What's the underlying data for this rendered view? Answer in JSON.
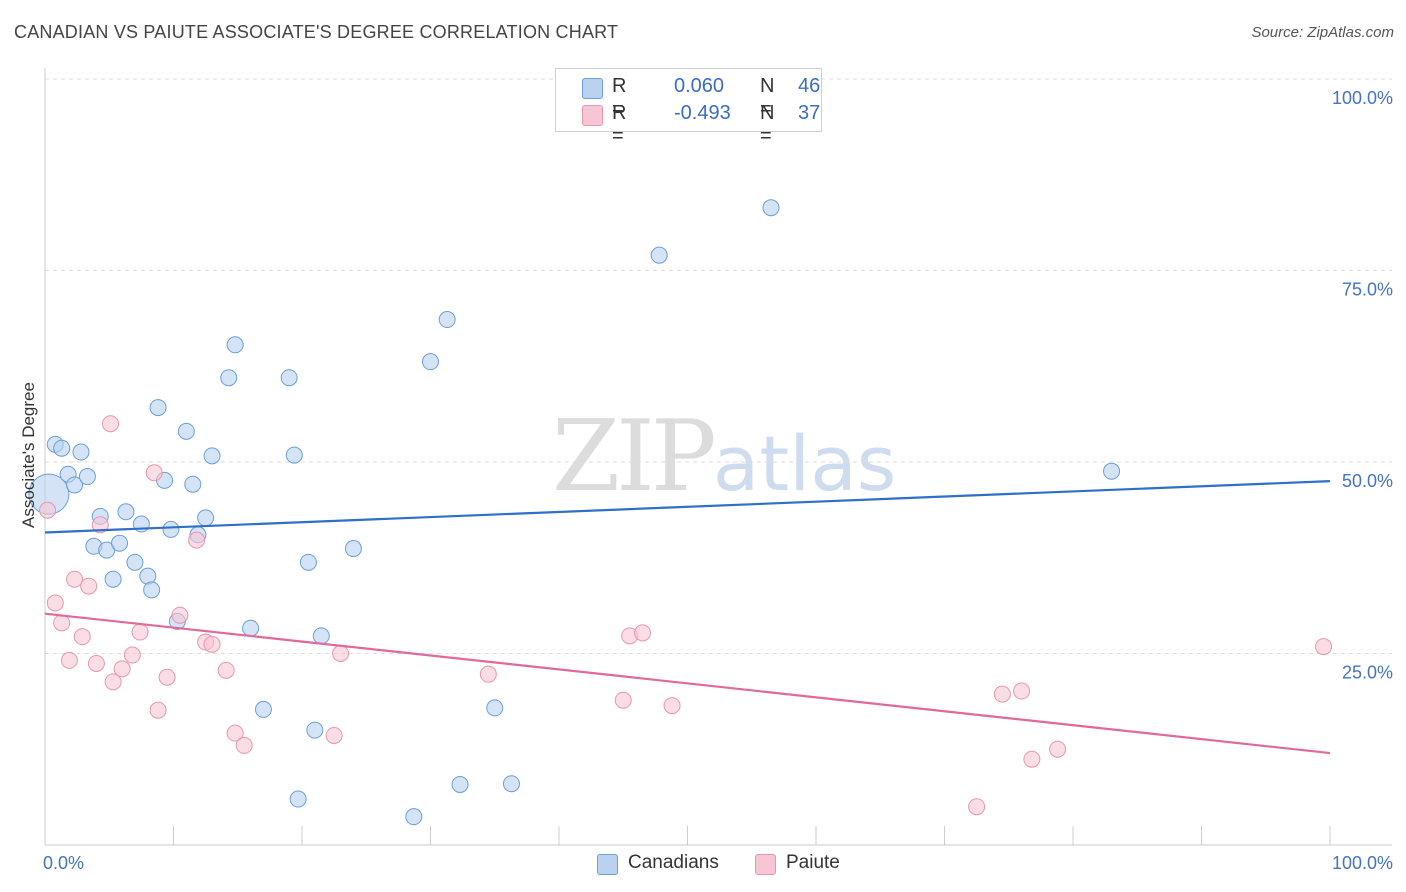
{
  "header": {
    "title": "CANADIAN VS PAIUTE ASSOCIATE'S DEGREE CORRELATION CHART",
    "source": "Source: ZipAtlas.com"
  },
  "watermark": {
    "zip": "ZIP",
    "atlas": "atlas"
  },
  "legend": {
    "rows": [
      {
        "r_label": "R =",
        "r_value": "0.060",
        "n_label": "N =",
        "n_value": "46"
      },
      {
        "r_label": "R =",
        "r_value": "-0.493",
        "n_label": "N =",
        "n_value": "37"
      }
    ]
  },
  "bottom_legend": {
    "canadians": "Canadians",
    "paiute": "Paiute"
  },
  "colors": {
    "canadians_fill": "#b8d2f0",
    "canadians_stroke": "#6a9fd8",
    "canadians_line": "#2f6fc9",
    "paiute_fill": "#f7c6d4",
    "paiute_stroke": "#e896b0",
    "paiute_line": "#e0699a"
  },
  "chart_data": {
    "type": "scatter",
    "title": "CANADIAN VS PAIUTE ASSOCIATE'S DEGREE CORRELATION CHART",
    "xlabel": "",
    "ylabel": "Associate's Degree",
    "xlim": [
      0,
      100
    ],
    "ylim": [
      0,
      100
    ],
    "x_tick_labels": [
      "0.0%",
      "100.0%"
    ],
    "y_tick_labels": [
      "100.0%",
      "75.0%",
      "50.0%",
      "25.0%"
    ],
    "y_ticks": [
      100,
      75,
      50,
      25
    ],
    "series": [
      {
        "name": "Canadians",
        "r": 0.06,
        "n": 46,
        "trend": {
          "x": [
            0,
            100
          ],
          "y": [
            40.8,
            47.5
          ]
        },
        "points": [
          {
            "x": 0.3,
            "y": 45.8,
            "big": true
          },
          {
            "x": 0.8,
            "y": 52.3
          },
          {
            "x": 1.3,
            "y": 51.8
          },
          {
            "x": 1.8,
            "y": 48.4
          },
          {
            "x": 2.3,
            "y": 47.0
          },
          {
            "x": 2.8,
            "y": 51.3
          },
          {
            "x": 3.3,
            "y": 48.1
          },
          {
            "x": 3.8,
            "y": 39.0
          },
          {
            "x": 4.3,
            "y": 42.9
          },
          {
            "x": 4.8,
            "y": 38.5
          },
          {
            "x": 5.3,
            "y": 34.7
          },
          {
            "x": 5.8,
            "y": 39.4
          },
          {
            "x": 6.3,
            "y": 43.5
          },
          {
            "x": 7.0,
            "y": 36.9
          },
          {
            "x": 7.5,
            "y": 41.9
          },
          {
            "x": 8.0,
            "y": 35.1
          },
          {
            "x": 8.3,
            "y": 33.3
          },
          {
            "x": 8.8,
            "y": 57.1
          },
          {
            "x": 9.3,
            "y": 47.6
          },
          {
            "x": 9.8,
            "y": 41.2
          },
          {
            "x": 10.3,
            "y": 29.2
          },
          {
            "x": 11.0,
            "y": 54.0
          },
          {
            "x": 11.5,
            "y": 47.1
          },
          {
            "x": 11.9,
            "y": 40.5
          },
          {
            "x": 12.5,
            "y": 42.7
          },
          {
            "x": 13.0,
            "y": 50.8
          },
          {
            "x": 14.3,
            "y": 61.0
          },
          {
            "x": 14.8,
            "y": 65.3
          },
          {
            "x": 16.0,
            "y": 28.3
          },
          {
            "x": 17.0,
            "y": 17.7
          },
          {
            "x": 19.0,
            "y": 61.0
          },
          {
            "x": 19.4,
            "y": 50.9
          },
          {
            "x": 19.7,
            "y": 6.0
          },
          {
            "x": 20.5,
            "y": 36.9
          },
          {
            "x": 21.0,
            "y": 15.0
          },
          {
            "x": 21.5,
            "y": 27.3
          },
          {
            "x": 24.0,
            "y": 38.7
          },
          {
            "x": 28.7,
            "y": 3.7
          },
          {
            "x": 30.0,
            "y": 63.1
          },
          {
            "x": 31.3,
            "y": 68.6
          },
          {
            "x": 32.3,
            "y": 7.9
          },
          {
            "x": 35.0,
            "y": 17.9
          },
          {
            "x": 36.3,
            "y": 8.0
          },
          {
            "x": 47.8,
            "y": 77.0
          },
          {
            "x": 56.5,
            "y": 83.2
          },
          {
            "x": 83.0,
            "y": 48.8
          }
        ]
      },
      {
        "name": "Paiute",
        "r": -0.493,
        "n": 37,
        "trend": {
          "x": [
            0,
            100
          ],
          "y": [
            30.2,
            12.0
          ]
        },
        "points": [
          {
            "x": 0.2,
            "y": 43.7
          },
          {
            "x": 0.8,
            "y": 31.6
          },
          {
            "x": 1.3,
            "y": 29.0
          },
          {
            "x": 1.9,
            "y": 24.1
          },
          {
            "x": 2.3,
            "y": 34.7
          },
          {
            "x": 2.9,
            "y": 27.2
          },
          {
            "x": 3.4,
            "y": 33.8
          },
          {
            "x": 4.0,
            "y": 23.7
          },
          {
            "x": 4.3,
            "y": 41.8
          },
          {
            "x": 5.1,
            "y": 55.0
          },
          {
            "x": 5.3,
            "y": 21.3
          },
          {
            "x": 6.0,
            "y": 23.0
          },
          {
            "x": 6.8,
            "y": 24.8
          },
          {
            "x": 7.4,
            "y": 27.8
          },
          {
            "x": 8.5,
            "y": 48.6
          },
          {
            "x": 8.8,
            "y": 17.6
          },
          {
            "x": 9.5,
            "y": 21.9
          },
          {
            "x": 10.5,
            "y": 30.0
          },
          {
            "x": 11.8,
            "y": 39.8
          },
          {
            "x": 12.5,
            "y": 26.5
          },
          {
            "x": 13.0,
            "y": 26.2
          },
          {
            "x": 14.1,
            "y": 22.8
          },
          {
            "x": 14.8,
            "y": 14.6
          },
          {
            "x": 15.5,
            "y": 13.0
          },
          {
            "x": 22.5,
            "y": 14.3
          },
          {
            "x": 23.0,
            "y": 25.0
          },
          {
            "x": 34.5,
            "y": 22.3
          },
          {
            "x": 45.0,
            "y": 18.9
          },
          {
            "x": 45.5,
            "y": 27.3
          },
          {
            "x": 46.5,
            "y": 27.7
          },
          {
            "x": 48.8,
            "y": 18.2
          },
          {
            "x": 72.5,
            "y": 5.0
          },
          {
            "x": 74.5,
            "y": 19.7
          },
          {
            "x": 76.0,
            "y": 20.1
          },
          {
            "x": 76.8,
            "y": 11.2
          },
          {
            "x": 78.8,
            "y": 12.5
          },
          {
            "x": 99.5,
            "y": 25.9
          }
        ]
      }
    ]
  }
}
